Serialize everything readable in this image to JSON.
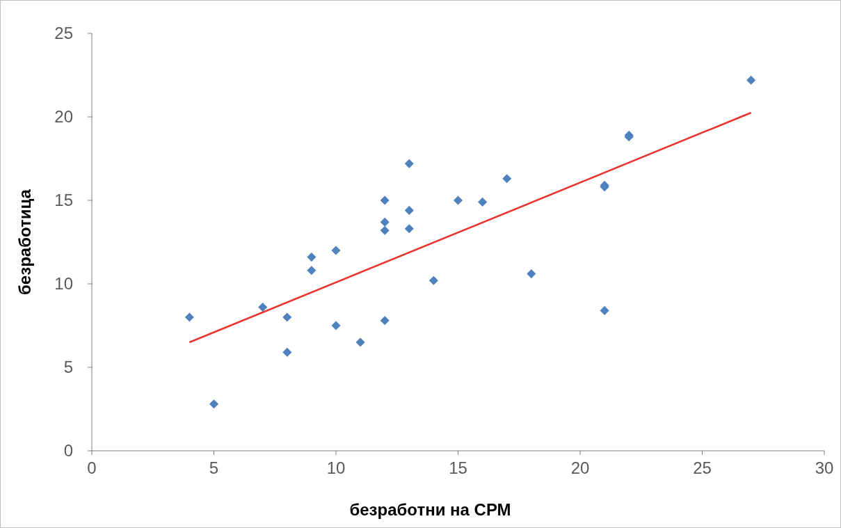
{
  "chart_data": {
    "type": "scatter",
    "xlabel": "безработни на СРМ",
    "ylabel": "безработица",
    "xlim": [
      0,
      30
    ],
    "xticks": [
      0,
      5,
      10,
      15,
      20,
      25,
      30
    ],
    "ylim": [
      0,
      25
    ],
    "yticks": [
      0,
      5,
      10,
      15,
      20,
      25
    ],
    "grid": false,
    "marker": "diamond",
    "series": [
      {
        "color": "#4f81bd",
        "x": [
          4,
          5,
          7,
          8,
          8,
          9,
          9,
          10,
          10,
          11,
          12,
          12,
          12,
          12,
          13,
          13,
          13,
          14,
          15,
          16,
          17,
          18,
          21,
          21,
          21,
          22,
          22,
          27
        ],
        "values": [
          8.0,
          2.8,
          8.6,
          8.0,
          5.9,
          11.6,
          10.8,
          12.0,
          7.5,
          6.5,
          15.0,
          13.7,
          13.2,
          7.8,
          17.2,
          14.4,
          13.3,
          10.2,
          15.0,
          14.9,
          16.3,
          10.6,
          15.9,
          15.8,
          8.4,
          18.8,
          18.9,
          22.2
        ]
      },
      {
        "type": "line",
        "color": "#e8322e",
        "x": [
          4,
          27
        ],
        "values": [
          6.5,
          20.25
        ],
        "marker": "none",
        "line_style": "solid"
      }
    ]
  }
}
